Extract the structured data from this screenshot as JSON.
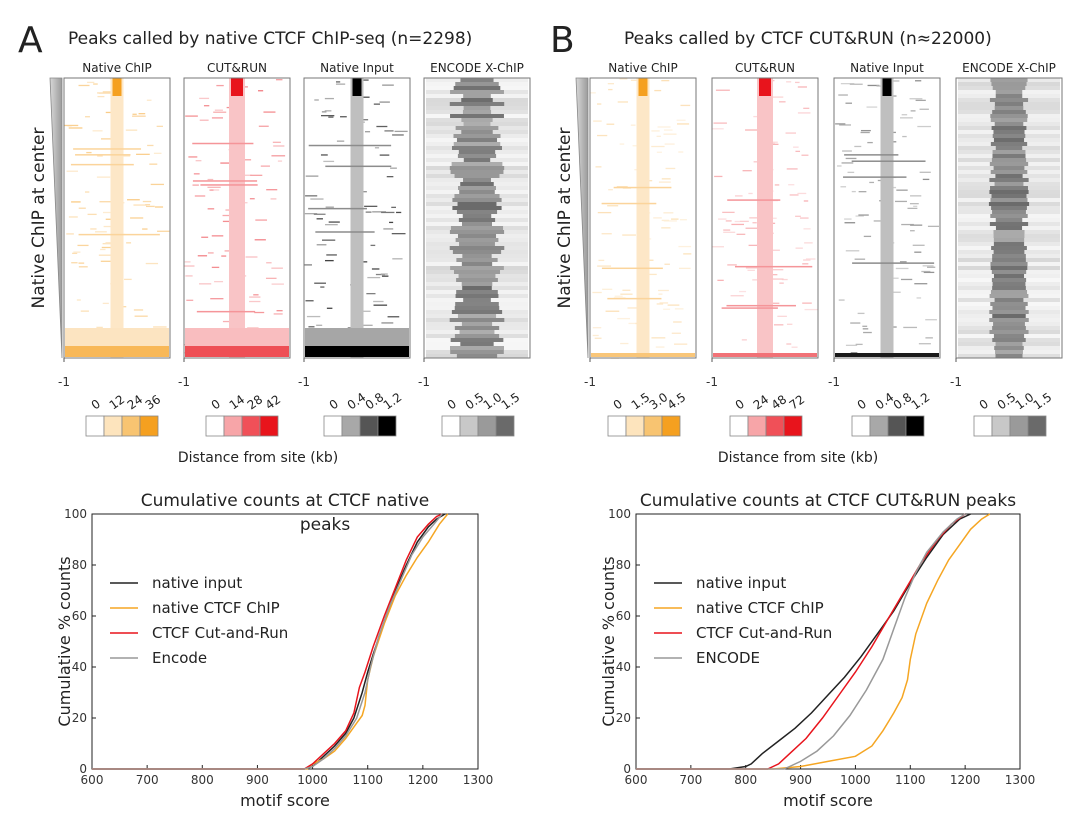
{
  "panels": [
    {
      "letter": "A",
      "title": "Peaks called by native CTCF ChIP-seq (n=2298)",
      "row_label": "Native ChIP at center",
      "xlabel": "Distance from site (kb)",
      "x_tick": "-1",
      "heatmaps": [
        {
          "name": "Native ChIP",
          "color": "#f5a020",
          "legend_ticks": [
            "0",
            "12",
            "24",
            "36"
          ],
          "legend_colors": [
            "#ffffff",
            "#fde4bd",
            "#f8c471",
            "#f5a020"
          ]
        },
        {
          "name": "CUT&RUN",
          "color": "#e8141c",
          "legend_ticks": [
            "0",
            "14",
            "28",
            "42"
          ],
          "legend_colors": [
            "#ffffff",
            "#f7a5a8",
            "#f05058",
            "#e8141c"
          ]
        },
        {
          "name": "Native Input",
          "color": "#000000",
          "legend_ticks": [
            "0",
            "0.4",
            "0.8",
            "1.2"
          ],
          "legend_colors": [
            "#ffffff",
            "#a8a8a8",
            "#555555",
            "#000000"
          ]
        },
        {
          "name": "ENCODE X-ChIP",
          "color": "#666666",
          "legend_ticks": [
            "0",
            "0.5",
            "1.0",
            "1.5"
          ],
          "legend_colors": [
            "#ffffff",
            "#c8c8c8",
            "#9a9a9a",
            "#6a6a6a"
          ]
        }
      ]
    },
    {
      "letter": "B",
      "title": "Peaks called by CTCF CUT&RUN (n≈22000)",
      "row_label": "Native ChIP at center",
      "xlabel": "Distance from site (kb)",
      "x_tick": "-1",
      "heatmaps": [
        {
          "name": "Native ChIP",
          "color": "#f5a020",
          "legend_ticks": [
            "0",
            "1.5",
            "3.0",
            "4.5"
          ],
          "legend_colors": [
            "#ffffff",
            "#fde4bd",
            "#f8c471",
            "#f5a020"
          ]
        },
        {
          "name": "CUT&RUN",
          "color": "#e8141c",
          "legend_ticks": [
            "0",
            "24",
            "48",
            "72"
          ],
          "legend_colors": [
            "#ffffff",
            "#f7a5a8",
            "#f05058",
            "#e8141c"
          ]
        },
        {
          "name": "Native Input",
          "color": "#000000",
          "legend_ticks": [
            "0",
            "0.4",
            "0.8",
            "1.2"
          ],
          "legend_colors": [
            "#ffffff",
            "#a8a8a8",
            "#555555",
            "#000000"
          ]
        },
        {
          "name": "ENCODE X-ChIP",
          "color": "#666666",
          "legend_ticks": [
            "0",
            "0.5",
            "1.0",
            "1.5"
          ],
          "legend_colors": [
            "#ffffff",
            "#c8c8c8",
            "#9a9a9a",
            "#6a6a6a"
          ]
        }
      ]
    }
  ],
  "chart_data": [
    {
      "type": "line",
      "title": "Cumulative counts at CTCF native peaks",
      "xlabel": "motif score",
      "ylabel": "Cumulative % counts",
      "xlim": [
        600,
        1300
      ],
      "ylim": [
        0,
        100
      ],
      "xticks": [
        600,
        700,
        800,
        900,
        1000,
        1100,
        1200,
        1300
      ],
      "yticks": [
        0,
        20,
        40,
        60,
        80,
        100
      ],
      "legend_position": "center-left",
      "series": [
        {
          "name": "native input",
          "color": "#222222",
          "points": [
            [
              600,
              0
            ],
            [
              985,
              0
            ],
            [
              1000,
              1
            ],
            [
              1020,
              5
            ],
            [
              1040,
              9
            ],
            [
              1060,
              14
            ],
            [
              1075,
              20
            ],
            [
              1090,
              30
            ],
            [
              1100,
              38
            ],
            [
              1110,
              45
            ],
            [
              1130,
              58
            ],
            [
              1150,
              70
            ],
            [
              1170,
              80
            ],
            [
              1190,
              89
            ],
            [
              1210,
              95
            ],
            [
              1225,
              98
            ],
            [
              1240,
              100
            ]
          ]
        },
        {
          "name": "native CTCF ChIP",
          "color": "#f5a623",
          "points": [
            [
              600,
              0
            ],
            [
              990,
              0
            ],
            [
              1000,
              2
            ],
            [
              1020,
              4
            ],
            [
              1040,
              7
            ],
            [
              1060,
              12
            ],
            [
              1080,
              18
            ],
            [
              1090,
              21
            ],
            [
              1095,
              25
            ],
            [
              1100,
              35
            ],
            [
              1110,
              44
            ],
            [
              1130,
              57
            ],
            [
              1150,
              68
            ],
            [
              1170,
              76
            ],
            [
              1190,
              83
            ],
            [
              1210,
              89
            ],
            [
              1230,
              96
            ],
            [
              1245,
              100
            ]
          ]
        },
        {
          "name": "CTCF Cut-and-Run",
          "color": "#e8141c",
          "points": [
            [
              600,
              0
            ],
            [
              985,
              0
            ],
            [
              1000,
              2
            ],
            [
              1020,
              6
            ],
            [
              1040,
              10
            ],
            [
              1060,
              15
            ],
            [
              1075,
              22
            ],
            [
              1085,
              32
            ],
            [
              1095,
              38
            ],
            [
              1110,
              48
            ],
            [
              1130,
              60
            ],
            [
              1150,
              71
            ],
            [
              1170,
              82
            ],
            [
              1190,
              91
            ],
            [
              1210,
              96
            ],
            [
              1225,
              99
            ],
            [
              1235,
              100
            ]
          ]
        },
        {
          "name": "Encode",
          "color": "#999999",
          "points": [
            [
              600,
              0
            ],
            [
              985,
              0
            ],
            [
              1000,
              1
            ],
            [
              1020,
              4
            ],
            [
              1040,
              8
            ],
            [
              1060,
              13
            ],
            [
              1080,
              20
            ],
            [
              1095,
              30
            ],
            [
              1105,
              40
            ],
            [
              1120,
              52
            ],
            [
              1140,
              64
            ],
            [
              1160,
              74
            ],
            [
              1180,
              84
            ],
            [
              1200,
              91
            ],
            [
              1220,
              96
            ],
            [
              1235,
              100
            ]
          ]
        }
      ]
    },
    {
      "type": "line",
      "title": "Cumulative counts at CTCF CUT&RUN peaks",
      "xlabel": "motif score",
      "ylabel": "Cumulative % counts",
      "xlim": [
        600,
        1300
      ],
      "ylim": [
        0,
        100
      ],
      "xticks": [
        600,
        700,
        800,
        900,
        1000,
        1100,
        1200,
        1300
      ],
      "yticks": [
        0,
        20,
        40,
        60,
        80,
        100
      ],
      "legend_position": "center-left",
      "series": [
        {
          "name": "native input",
          "color": "#222222",
          "points": [
            [
              600,
              0
            ],
            [
              770,
              0
            ],
            [
              800,
              1
            ],
            [
              810,
              2
            ],
            [
              830,
              6
            ],
            [
              860,
              11
            ],
            [
              890,
              16
            ],
            [
              920,
              22
            ],
            [
              950,
              29
            ],
            [
              980,
              36
            ],
            [
              1010,
              44
            ],
            [
              1040,
              53
            ],
            [
              1070,
              62
            ],
            [
              1100,
              73
            ],
            [
              1130,
              83
            ],
            [
              1160,
              92
            ],
            [
              1190,
              98
            ],
            [
              1210,
              100
            ]
          ]
        },
        {
          "name": "native CTCF ChIP",
          "color": "#f5a623",
          "points": [
            [
              600,
              0
            ],
            [
              850,
              0
            ],
            [
              900,
              1
            ],
            [
              950,
              3
            ],
            [
              1000,
              5
            ],
            [
              1030,
              9
            ],
            [
              1050,
              15
            ],
            [
              1070,
              22
            ],
            [
              1085,
              28
            ],
            [
              1095,
              35
            ],
            [
              1100,
              43
            ],
            [
              1110,
              53
            ],
            [
              1130,
              65
            ],
            [
              1150,
              74
            ],
            [
              1170,
              82
            ],
            [
              1190,
              88
            ],
            [
              1210,
              94
            ],
            [
              1230,
              98
            ],
            [
              1245,
              100
            ]
          ]
        },
        {
          "name": "CTCF Cut-and-Run",
          "color": "#e8141c",
          "points": [
            [
              600,
              0
            ],
            [
              840,
              0
            ],
            [
              860,
              2
            ],
            [
              880,
              6
            ],
            [
              910,
              12
            ],
            [
              940,
              20
            ],
            [
              970,
              29
            ],
            [
              1000,
              38
            ],
            [
              1030,
              48
            ],
            [
              1060,
              59
            ],
            [
              1090,
              70
            ],
            [
              1120,
              81
            ],
            [
              1150,
              90
            ],
            [
              1175,
              96
            ],
            [
              1200,
              100
            ]
          ]
        },
        {
          "name": "ENCODE",
          "color": "#999999",
          "points": [
            [
              600,
              0
            ],
            [
              870,
              0
            ],
            [
              880,
              1
            ],
            [
              900,
              3
            ],
            [
              930,
              7
            ],
            [
              960,
              13
            ],
            [
              990,
              21
            ],
            [
              1020,
              31
            ],
            [
              1050,
              43
            ],
            [
              1070,
              55
            ],
            [
              1090,
              67
            ],
            [
              1110,
              77
            ],
            [
              1130,
              85
            ],
            [
              1160,
              93
            ],
            [
              1185,
              98
            ],
            [
              1200,
              100
            ]
          ]
        }
      ]
    }
  ]
}
